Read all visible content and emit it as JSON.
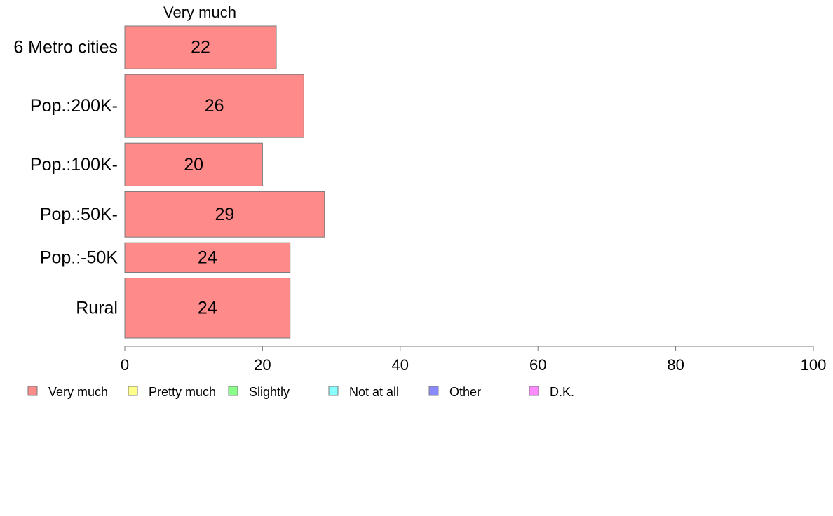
{
  "chart_data": {
    "type": "bar",
    "orientation": "horizontal",
    "series_header": "Very much",
    "categories": [
      "6 Metro cities",
      "Pop.:200K-",
      "Pop.:100K-",
      "Pop.:50K-",
      "Pop.:-50K",
      "Rural"
    ],
    "relative_widths": [
      0.68,
      1.0,
      0.68,
      0.72,
      0.47,
      0.95
    ],
    "series": [
      {
        "name": "Very much",
        "values": [
          22,
          26,
          20,
          29,
          24,
          24
        ]
      }
    ],
    "xlim": [
      0,
      100
    ],
    "xticks": [
      0,
      20,
      40,
      60,
      80,
      100
    ],
    "grid": false,
    "legend": {
      "placement": "bottom",
      "items": [
        {
          "label": "Very much",
          "color": "#ff8a8a"
        },
        {
          "label": "Pretty much",
          "color": "#ffff8a"
        },
        {
          "label": "Slightly",
          "color": "#8aff8a"
        },
        {
          "label": "Not at all",
          "color": "#8affff"
        },
        {
          "label": "Other",
          "color": "#8a8aff"
        },
        {
          "label": "D.K.",
          "color": "#ff8aff"
        }
      ]
    },
    "bar_color": "#ff8a8a"
  }
}
